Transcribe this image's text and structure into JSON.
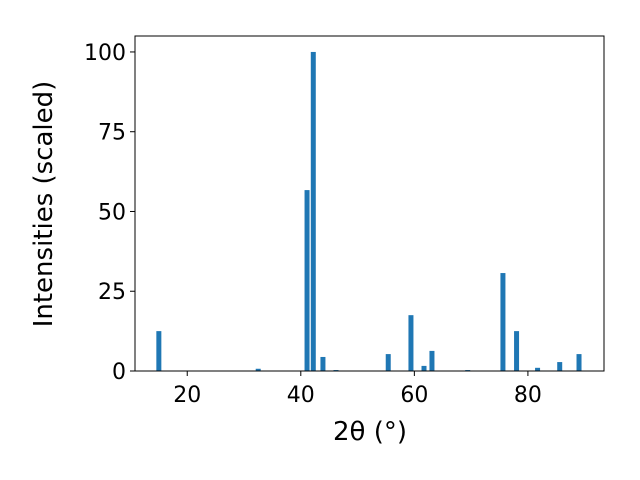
{
  "chart_data": {
    "type": "bar",
    "xlabel": "2θ (°)",
    "ylabel": "Intensities (scaled)",
    "x": [
      15.0,
      32.5,
      41.1,
      42.2,
      43.9,
      46.2,
      55.4,
      59.4,
      61.7,
      63.1,
      69.4,
      75.6,
      78.0,
      81.7,
      85.6,
      89.0
    ],
    "values": [
      12.5,
      0.7,
      56.7,
      100,
      4.4,
      0.3,
      5.3,
      17.5,
      1.6,
      6.3,
      0.3,
      30.7,
      12.5,
      1.0,
      2.8,
      5.3
    ],
    "color": "#1f77b4",
    "xlim": [
      10.8,
      93.4
    ],
    "xticks": [
      20,
      40,
      60,
      80
    ],
    "ylim": [
      0,
      105
    ],
    "yticks": [
      0,
      25,
      50,
      75,
      100
    ]
  }
}
